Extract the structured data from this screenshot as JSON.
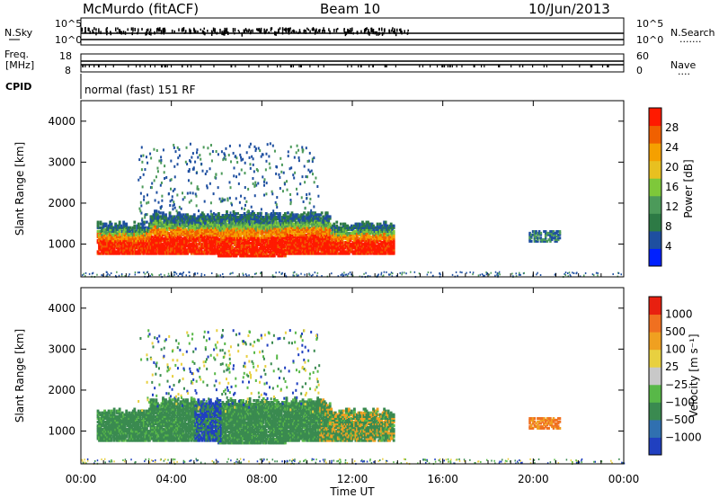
{
  "header": {
    "station": "McMurdo (fitACF)",
    "beam": "Beam 10",
    "date": "10/Jun/2013"
  },
  "strips": {
    "nsky": {
      "label": "N.Sky",
      "ticks": [
        "10^5",
        "10^0"
      ]
    },
    "nsearch": {
      "label": "N.Search",
      "ticks": [
        "10^5",
        "10^0"
      ],
      "dots": "·······"
    },
    "freq": {
      "label": "Freq.",
      "unit": "[MHz]",
      "ticks": [
        "18",
        "8"
      ]
    },
    "nave": {
      "label": "Nave",
      "ticks": [
        "60",
        "0"
      ],
      "dots": "····"
    },
    "cpid": {
      "label": "CPID",
      "mode": "normal (fast) 151 RF"
    }
  },
  "chart_data": [
    {
      "type": "heatmap",
      "panel": "power",
      "xlabel": "",
      "ylabel": "Slant Range [km]",
      "x_range_hours": [
        0,
        24
      ],
      "xlim": [
        "00:00",
        "00:00"
      ],
      "ylim": [
        200,
        4500
      ],
      "y_ticks": [
        1000,
        2000,
        3000,
        4000
      ],
      "colorbar": {
        "label": "Power [dB]",
        "range": [
          0,
          32
        ],
        "ticks": [
          "4",
          "8",
          "12",
          "16",
          "20",
          "24",
          "28"
        ],
        "colors": [
          "#0020ff",
          "#1e4fa0",
          "#2d7a45",
          "#4c9a5a",
          "#7ec83a",
          "#e8c020",
          "#f5a000",
          "#f06000",
          "#ff1a00"
        ]
      },
      "echo_regions": [
        {
          "t_start": 0.7,
          "t_end": 13.8,
          "range_low": 700,
          "range_high": 1400,
          "description": "main echo band"
        },
        {
          "t_start": 2.5,
          "t_end": 10.5,
          "range_low": 1500,
          "range_high": 3500,
          "description": "scattered far-range echoes"
        },
        {
          "t_start": 19.8,
          "t_end": 21.2,
          "range_low": 1100,
          "range_high": 1350,
          "description": "late-day patch"
        }
      ]
    },
    {
      "type": "heatmap",
      "panel": "velocity",
      "xlabel": "Time UT",
      "ylabel": "Slant Range [km]",
      "x_range_hours": [
        0,
        24
      ],
      "x_ticks": [
        "00:00",
        "04:00",
        "08:00",
        "12:00",
        "16:00",
        "20:00",
        "00:00"
      ],
      "ylim": [
        200,
        4500
      ],
      "y_ticks": [
        1000,
        2000,
        3000,
        4000
      ],
      "colorbar": {
        "label": "Velocity [m s⁻¹]",
        "ticks": [
          "1000",
          "500",
          "100",
          "25",
          "−25",
          "−100",
          "−500",
          "−1000"
        ],
        "colors": [
          "#2040c0",
          "#3070b0",
          "#3a8a50",
          "#58b848",
          "#c8c8c8",
          "#e8d040",
          "#f0a020",
          "#f07020",
          "#e82010"
        ]
      }
    }
  ]
}
